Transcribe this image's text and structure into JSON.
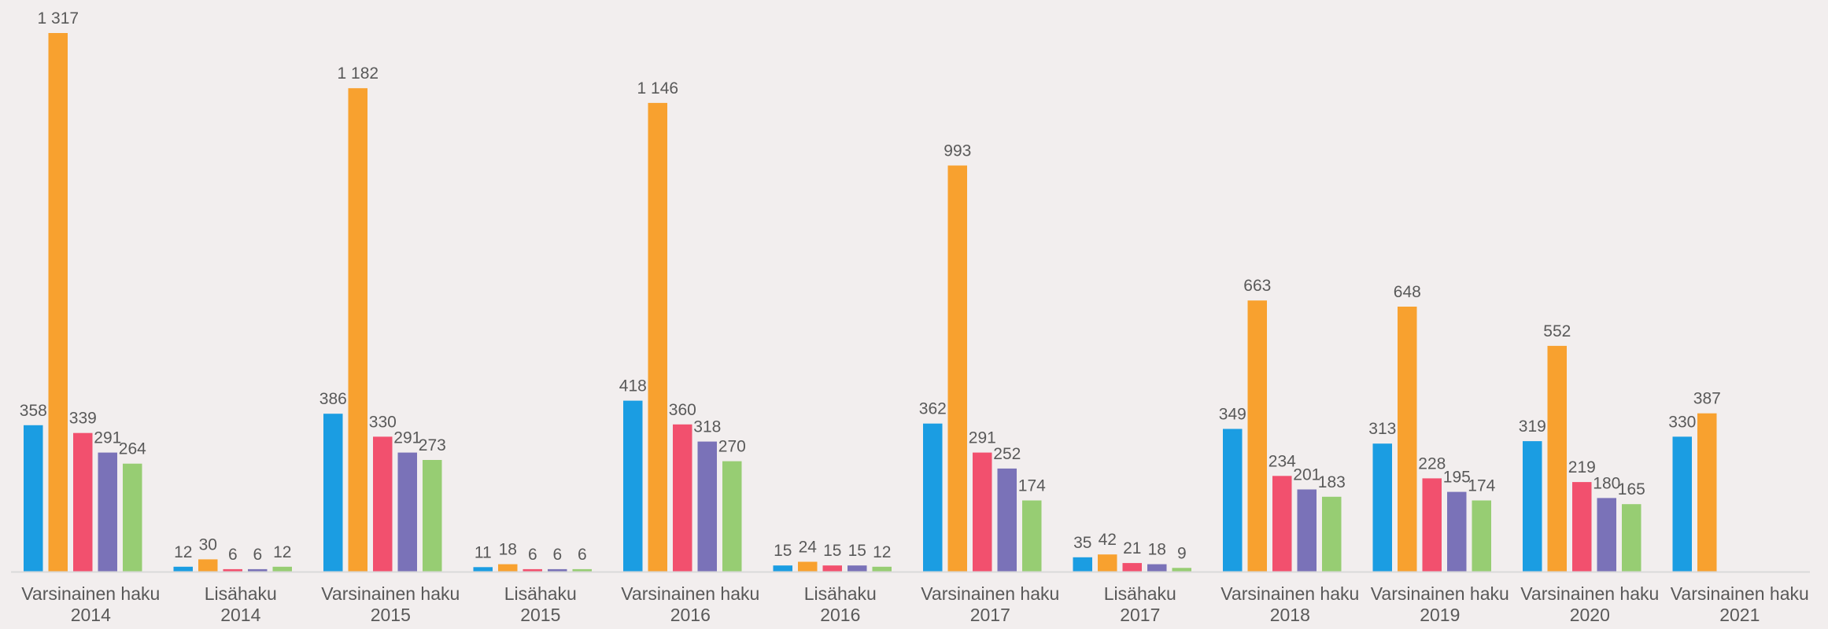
{
  "chart_data": {
    "type": "bar",
    "title": "",
    "xlabel": "",
    "ylabel": "",
    "ylim": [
      0,
      1317
    ],
    "grid": false,
    "legend": "none",
    "categories": [
      {
        "line1": "Varsinainen haku",
        "line2": "2014"
      },
      {
        "line1": "Lisähaku",
        "line2": "2014"
      },
      {
        "line1": "Varsinainen haku",
        "line2": "2015"
      },
      {
        "line1": "Lisähaku",
        "line2": "2015"
      },
      {
        "line1": "Varsinainen haku",
        "line2": "2016"
      },
      {
        "line1": "Lisähaku",
        "line2": "2016"
      },
      {
        "line1": "Varsinainen haku",
        "line2": "2017"
      },
      {
        "line1": "Lisähaku",
        "line2": "2017"
      },
      {
        "line1": "Varsinainen haku",
        "line2": "2018"
      },
      {
        "line1": "Varsinainen haku",
        "line2": "2019"
      },
      {
        "line1": "Varsinainen haku",
        "line2": "2020"
      },
      {
        "line1": "Varsinainen haku",
        "line2": "2021"
      }
    ],
    "series": [
      {
        "color": "#1b9de2",
        "values": [
          358,
          12,
          386,
          11,
          418,
          15,
          362,
          35,
          349,
          313,
          319,
          330
        ],
        "labels": [
          "358",
          "12",
          "386",
          "11",
          "418",
          "15",
          "362",
          "35",
          "349",
          "313",
          "319",
          "330"
        ]
      },
      {
        "color": "#f8a12f",
        "values": [
          1317,
          30,
          1182,
          18,
          1146,
          24,
          993,
          42,
          663,
          648,
          552,
          387
        ],
        "labels": [
          "1 317",
          "30",
          "1 182",
          "18",
          "1 146",
          "24",
          "993",
          "42",
          "663",
          "648",
          "552",
          "387"
        ]
      },
      {
        "color": "#f2506e",
        "values": [
          339,
          6,
          330,
          6,
          360,
          15,
          291,
          21,
          234,
          228,
          219,
          null
        ],
        "labels": [
          "339",
          "6",
          "330",
          "6",
          "360",
          "15",
          "291",
          "21",
          "234",
          "228",
          "219",
          null
        ]
      },
      {
        "color": "#7a72b8",
        "values": [
          291,
          6,
          291,
          6,
          318,
          15,
          252,
          18,
          201,
          195,
          180,
          null
        ],
        "labels": [
          "291",
          "6",
          "291",
          "6",
          "318",
          "15",
          "252",
          "18",
          "201",
          "195",
          "180",
          null
        ]
      },
      {
        "color": "#97cd73",
        "values": [
          264,
          12,
          273,
          6,
          270,
          12,
          174,
          9,
          183,
          174,
          165,
          null
        ],
        "labels": [
          "264",
          "12",
          "273",
          "6",
          "270",
          "12",
          "174",
          "9",
          "183",
          "174",
          "165",
          null
        ]
      }
    ]
  }
}
